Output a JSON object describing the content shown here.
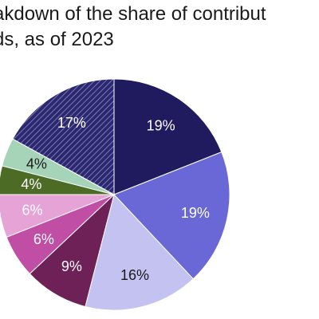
{
  "title_lines": [
    "akdown of the share of contribut",
    "ds, as of 2023"
  ],
  "chart_data": {
    "type": "pie",
    "title": "akdown of the share of contribut ds, as of 2023",
    "start_angle_deg": 0,
    "direction": "clockwise",
    "slices": [
      {
        "value": 19,
        "label": "19%",
        "color": "#1f1b5e",
        "label_color": "#ffffff",
        "pattern": false
      },
      {
        "value": 19,
        "label": "19%",
        "color": "#6a67d6",
        "label_color": "#ffffff",
        "pattern": false
      },
      {
        "value": 16,
        "label": "16%",
        "color": "#c4c2f0",
        "label_color": "#1a1a1a",
        "pattern": false
      },
      {
        "value": 9,
        "label": "9%",
        "color": "#6e2156",
        "label_color": "#ffffff",
        "pattern": false
      },
      {
        "value": 6,
        "label": "6%",
        "color": "#c04ea4",
        "label_color": "#ffffff",
        "pattern": false
      },
      {
        "value": 6,
        "label": "6%",
        "color": "#e6a3d6",
        "label_color": "#ffffff",
        "pattern": false
      },
      {
        "value": 4,
        "label": "4%",
        "color": "#4c6b25",
        "label_color": "#ffffff",
        "pattern": false
      },
      {
        "value": 4,
        "label": "4%",
        "color": "#a6d4b9",
        "label_color": "#1a1a1a",
        "pattern": false
      },
      {
        "value": 17,
        "label": "17%",
        "color": "#2b2870",
        "label_color": "#ffffff",
        "pattern": true
      }
    ]
  }
}
